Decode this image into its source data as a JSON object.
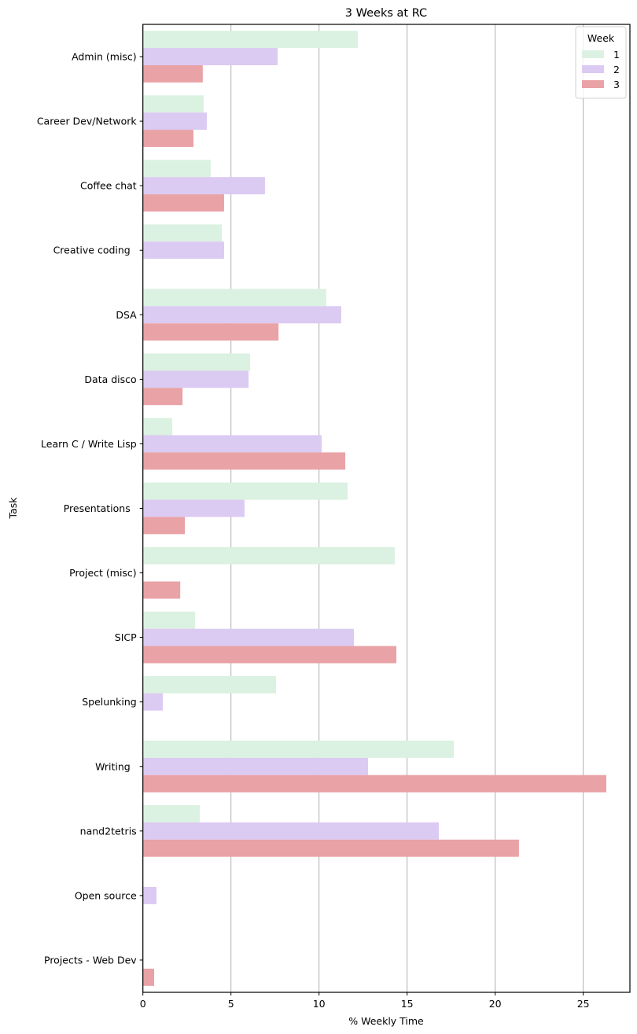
{
  "chart_data": {
    "type": "bar",
    "orientation": "horizontal",
    "title": "3 Weeks at RC",
    "xlabel": "% Weekly Time",
    "ylabel": "Task",
    "xlim": [
      0,
      27.65
    ],
    "xticks": [
      0,
      5,
      10,
      15,
      20,
      25
    ],
    "grid": "x",
    "legend": {
      "title": "Week",
      "placement": "top-right",
      "entries": [
        "1",
        "2",
        "3"
      ]
    },
    "categories": [
      "Admin (misc)",
      "Career Dev/Network",
      "Coffee chat",
      "Creative coding ",
      "DSA",
      "Data disco",
      "Learn C / Write Lisp",
      "Presentations ",
      "Project (misc)",
      "SICP",
      "Spelunking",
      "Writing ",
      "nand2tetris",
      "Open source",
      "Projects - Web Dev"
    ],
    "series": [
      {
        "name": "1",
        "color": "#dbf1e1",
        "values": [
          12.2,
          3.45,
          3.85,
          4.48,
          10.41,
          6.09,
          1.67,
          11.62,
          14.3,
          2.96,
          7.56,
          17.65,
          3.23,
          null,
          null
        ]
      },
      {
        "name": "2",
        "color": "#dbcaf2",
        "values": [
          7.65,
          3.63,
          6.93,
          4.61,
          11.26,
          6.0,
          10.15,
          5.77,
          null,
          11.98,
          1.13,
          12.78,
          16.8,
          0.77,
          null
        ]
      },
      {
        "name": "3",
        "color": "#e9a2a6",
        "values": [
          3.4,
          2.87,
          4.61,
          null,
          7.7,
          2.25,
          11.49,
          2.38,
          2.12,
          14.39,
          null,
          26.31,
          21.35,
          null,
          0.64
        ]
      }
    ]
  }
}
